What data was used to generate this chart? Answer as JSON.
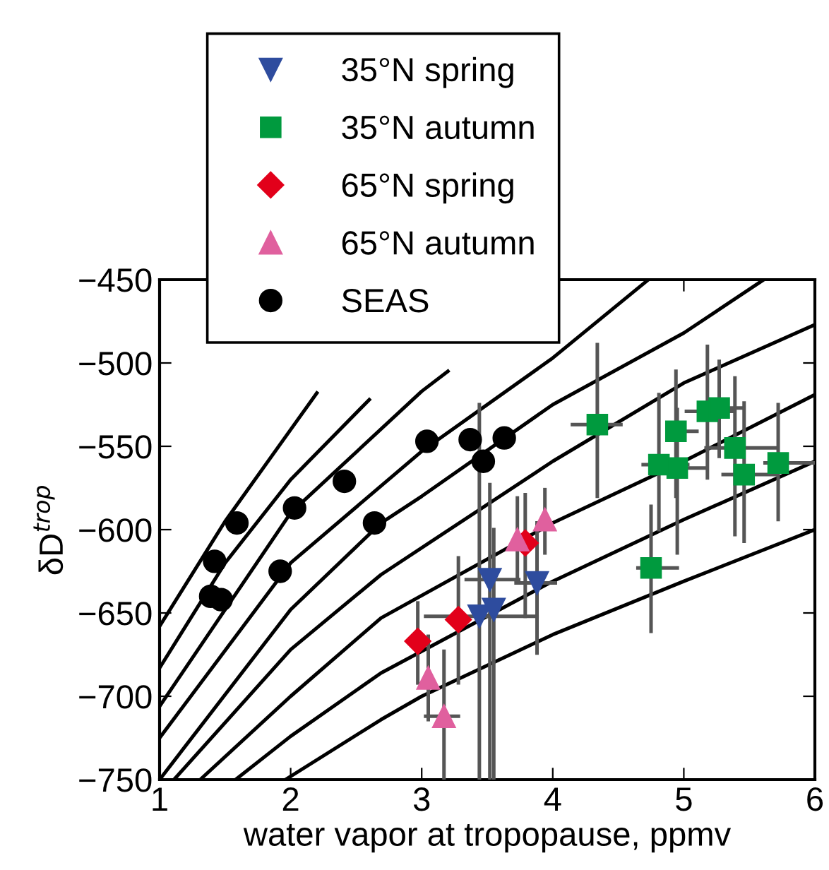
{
  "chart_data": {
    "type": "scatter",
    "xlabel": "water vapor at tropopause, ppmv",
    "ylabel": "δD$^{trop}$",
    "xlim": [
      1,
      6
    ],
    "xticks": [
      1,
      2,
      3,
      4,
      5,
      6
    ],
    "ylim": [
      -750,
      -450
    ],
    "yticks": [
      -750,
      -700,
      -650,
      -600,
      -550,
      -500,
      -450
    ],
    "grid": false,
    "legend": "top left",
    "series": [
      {
        "type": "line",
        "color": "#000000",
        "marker": "none",
        "x": [
          1.96,
          2.69,
          3,
          4,
          5,
          6
        ],
        "values": [
          -750,
          -714,
          -700,
          -663,
          -631,
          -600
        ]
      },
      {
        "type": "line",
        "color": "#000000",
        "marker": "none",
        "x": [
          1.58,
          2,
          2.69,
          4,
          5,
          6
        ],
        "values": [
          -750,
          -724,
          -686,
          -631,
          -594,
          -559
        ]
      },
      {
        "type": "line",
        "color": "#000000",
        "marker": "none",
        "x": [
          1.31,
          2,
          2.69,
          4,
          5,
          6
        ],
        "values": [
          -750,
          -700,
          -653,
          -596,
          -559,
          -519
        ]
      },
      {
        "type": "line",
        "color": "#000000",
        "marker": "none",
        "x": [
          1.11,
          2,
          2.69,
          4,
          5,
          6
        ],
        "values": [
          -750,
          -672,
          -627,
          -559,
          -512,
          -477
        ]
      },
      {
        "type": "line",
        "color": "#000000",
        "marker": "none",
        "x": [
          1,
          2,
          2.69,
          3,
          4,
          5,
          5.61
        ],
        "values": [
          -750,
          -648,
          -596,
          -580,
          -525,
          -482,
          -450
        ]
      },
      {
        "type": "line",
        "color": "#000000",
        "marker": "none",
        "x": [
          1,
          2,
          3,
          4,
          4.73
        ],
        "values": [
          -725,
          -620,
          -553,
          -497,
          -450
        ]
      },
      {
        "type": "line",
        "color": "#000000",
        "marker": "none",
        "x": [
          1,
          2,
          3,
          3.2
        ],
        "values": [
          -706,
          -590,
          -517,
          -505
        ]
      },
      {
        "type": "line",
        "color": "#000000",
        "marker": "none",
        "x": [
          1,
          1.5,
          2,
          2.6
        ],
        "values": [
          -683,
          -620,
          -570,
          -522
        ]
      },
      {
        "type": "line",
        "color": "#000000",
        "marker": "none",
        "x": [
          1,
          1.5,
          2,
          2.2
        ],
        "values": [
          -658,
          -595,
          -540,
          -518
        ]
      },
      {
        "name": "35°N spring",
        "color": "#2e4c9e",
        "marker": "triangle_down",
        "x": [
          3.52,
          3.44,
          3.55,
          3.88
        ],
        "values": [
          -630,
          -652,
          -648,
          -632
        ],
        "errors": [
          [
            -750,
            -573
          ],
          [
            -750,
            -525
          ],
          [
            -750,
            -600
          ],
          [
            -674,
            -596
          ]
        ],
        "xerrors": [
          [
            3.34,
            3.74
          ],
          [
            3.03,
            3.88
          ],
          null,
          [
            3.72,
            4.02
          ]
        ]
      },
      {
        "name": "35°N autumn",
        "color": "#009a3e",
        "marker": "square",
        "x": [
          4.34,
          4.94,
          4.81,
          4.95,
          5.18,
          5.27,
          5.39,
          5.46,
          5.72,
          4.75
        ],
        "values": [
          -537,
          -541,
          -561,
          -563,
          -529,
          -527,
          -551,
          -567,
          -560,
          -623
        ],
        "errors": [
          [
            -580,
            -489
          ],
          [
            -580,
            -505
          ],
          [
            -600,
            -519
          ],
          [
            -614,
            -528
          ],
          [
            -569,
            -490
          ],
          [
            -556,
            -499
          ],
          [
            -603,
            -509
          ],
          [
            -607,
            -524
          ],
          [
            -594,
            -525
          ],
          [
            -661,
            -586
          ]
        ],
        "xerrors": [
          [
            4.15,
            4.52
          ],
          [
            4.88,
            5.1
          ],
          [
            4.69,
            5.03
          ],
          [
            4.95,
            5.16
          ],
          [
            5.02,
            5.37
          ],
          [
            5.27,
            5.44
          ],
          [
            5.17,
            5.71
          ],
          [
            5.3,
            5.71
          ],
          [
            5.62,
            6
          ],
          [
            4.65,
            4.95
          ]
        ]
      },
      {
        "name": "65°N spring",
        "color": "#e2001a",
        "marker": "diamond",
        "x": [
          2.97,
          3.28,
          3.79
        ],
        "values": [
          -667,
          -654,
          -608
        ],
        "errors": [
          [
            -692,
            -644
          ],
          [
            -692,
            -617
          ],
          [
            -652,
            -579
          ]
        ]
      },
      {
        "name": "65°N autumn",
        "color": "#e0609e",
        "marker": "triangle",
        "x": [
          3.05,
          3.17,
          3.73,
          3.94
        ],
        "values": [
          -689,
          -712,
          -606,
          -594
        ],
        "errors": [
          [
            -714,
            -664
          ],
          [
            -750,
            -673
          ],
          [
            -632,
            -581
          ],
          [
            -614,
            -576
          ]
        ],
        "xerrors": [
          null,
          [
            3.03,
            3.28
          ],
          null,
          null
        ]
      },
      {
        "name": "SEAS",
        "color": "#000000",
        "marker": "circle",
        "x": [
          3.04,
          3.37,
          3.47,
          3.63,
          2.41,
          2.64,
          2.03,
          1.59,
          1.42,
          1.92,
          1.39,
          1.47
        ],
        "values": [
          -547,
          -546,
          -559,
          -545,
          -571,
          -596,
          -587,
          -596,
          -619,
          -625,
          -640,
          -642
        ]
      }
    ]
  }
}
